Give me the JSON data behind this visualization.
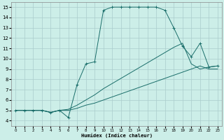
{
  "background_color": "#cceee8",
  "grid_color": "#aacccc",
  "line_color": "#1a6e6a",
  "xlabel": "Humidex (Indice chaleur)",
  "xlim": [
    -0.5,
    23.5
  ],
  "ylim": [
    3.5,
    15.5
  ],
  "xticks": [
    0,
    1,
    2,
    3,
    4,
    5,
    6,
    7,
    8,
    9,
    10,
    11,
    12,
    13,
    14,
    15,
    16,
    17,
    18,
    19,
    20,
    21,
    22,
    23
  ],
  "yticks": [
    4,
    5,
    6,
    7,
    8,
    9,
    10,
    11,
    12,
    13,
    14,
    15
  ],
  "series": [
    {
      "x": [
        0,
        1,
        2,
        3,
        4,
        5,
        6,
        7,
        8,
        9,
        10,
        11,
        12,
        13,
        14,
        15,
        16,
        17,
        18,
        19,
        20,
        21,
        22,
        23
      ],
      "y": [
        5,
        5,
        5,
        5,
        4.8,
        5.0,
        4.3,
        7.5,
        9.5,
        9.7,
        14.7,
        15.0,
        15.0,
        15.0,
        15.0,
        15.0,
        15.0,
        14.7,
        13.0,
        11.2,
        10.2,
        11.5,
        9.2,
        9.3
      ],
      "marker": "+"
    },
    {
      "x": [
        0,
        1,
        2,
        3,
        4,
        5,
        6,
        7,
        8,
        9,
        10,
        11,
        12,
        13,
        14,
        15,
        16,
        17,
        18,
        19,
        20,
        21,
        22,
        23
      ],
      "y": [
        5,
        5,
        5,
        5,
        4.8,
        5.0,
        5.0,
        5.2,
        5.5,
        5.7,
        6.0,
        6.3,
        6.6,
        6.9,
        7.2,
        7.5,
        7.8,
        8.1,
        8.4,
        8.7,
        9.0,
        9.3,
        9.0,
        9.0
      ],
      "marker": null
    },
    {
      "x": [
        0,
        1,
        2,
        3,
        4,
        5,
        6,
        7,
        8,
        9,
        10,
        11,
        12,
        13,
        14,
        15,
        16,
        17,
        18,
        19,
        20,
        21,
        22,
        23
      ],
      "y": [
        5,
        5,
        5,
        5,
        4.8,
        5.0,
        5.1,
        5.5,
        6.0,
        6.5,
        7.1,
        7.6,
        8.1,
        8.6,
        9.1,
        9.6,
        10.1,
        10.6,
        11.1,
        11.5,
        9.5,
        9.0,
        9.2,
        9.3
      ],
      "marker": null
    }
  ]
}
